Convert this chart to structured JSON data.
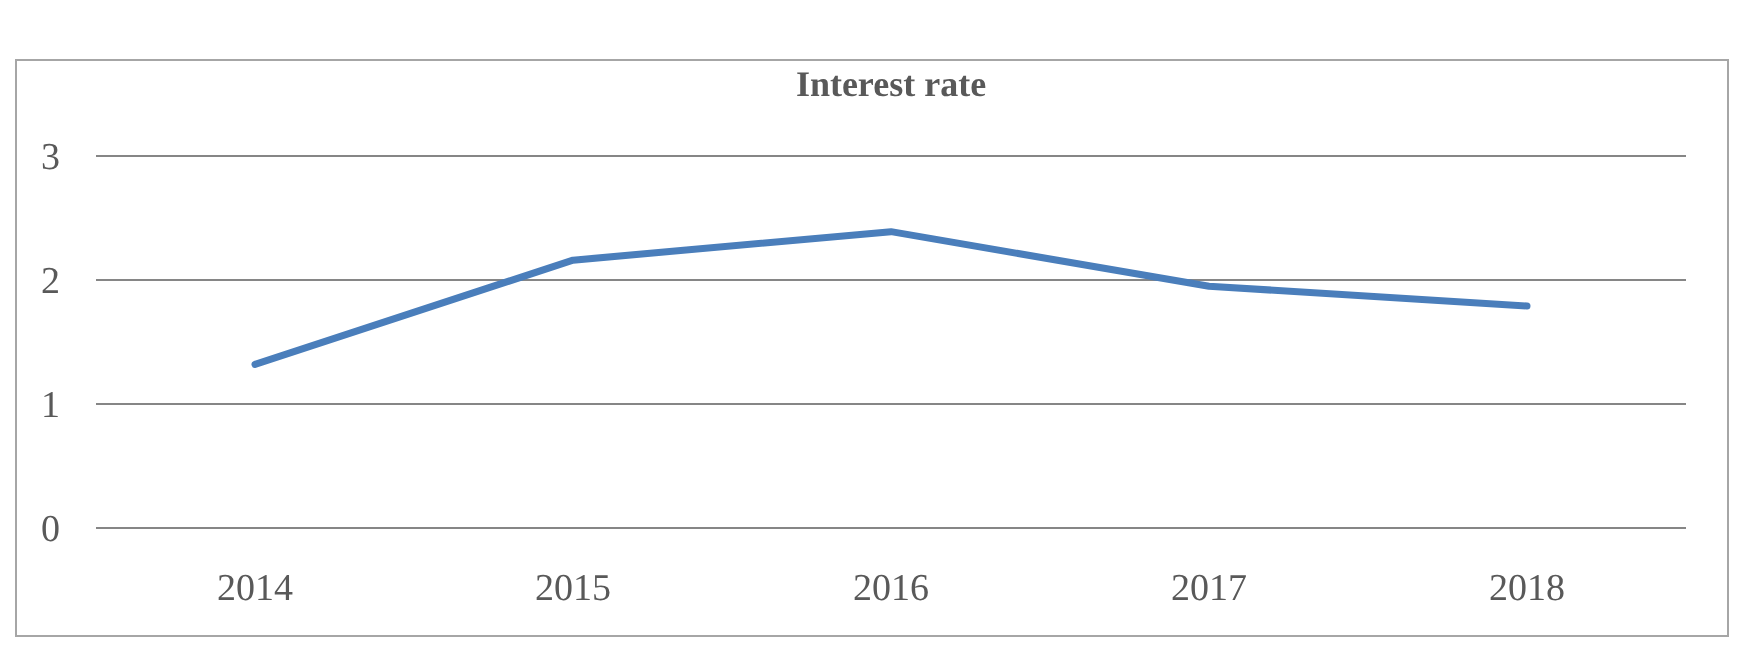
{
  "chart_data": {
    "type": "line",
    "title": "Interest rate",
    "categories": [
      "2014",
      "2015",
      "2016",
      "2017",
      "2018"
    ],
    "series": [
      {
        "color": "#4a7ebb",
        "values": [
          1.32,
          2.16,
          2.39,
          1.95,
          1.79
        ]
      }
    ],
    "ylim": [
      0,
      3
    ],
    "yticks": [
      0,
      1,
      2,
      3
    ],
    "grid": "y",
    "marker": "none",
    "line_style": "solid"
  }
}
